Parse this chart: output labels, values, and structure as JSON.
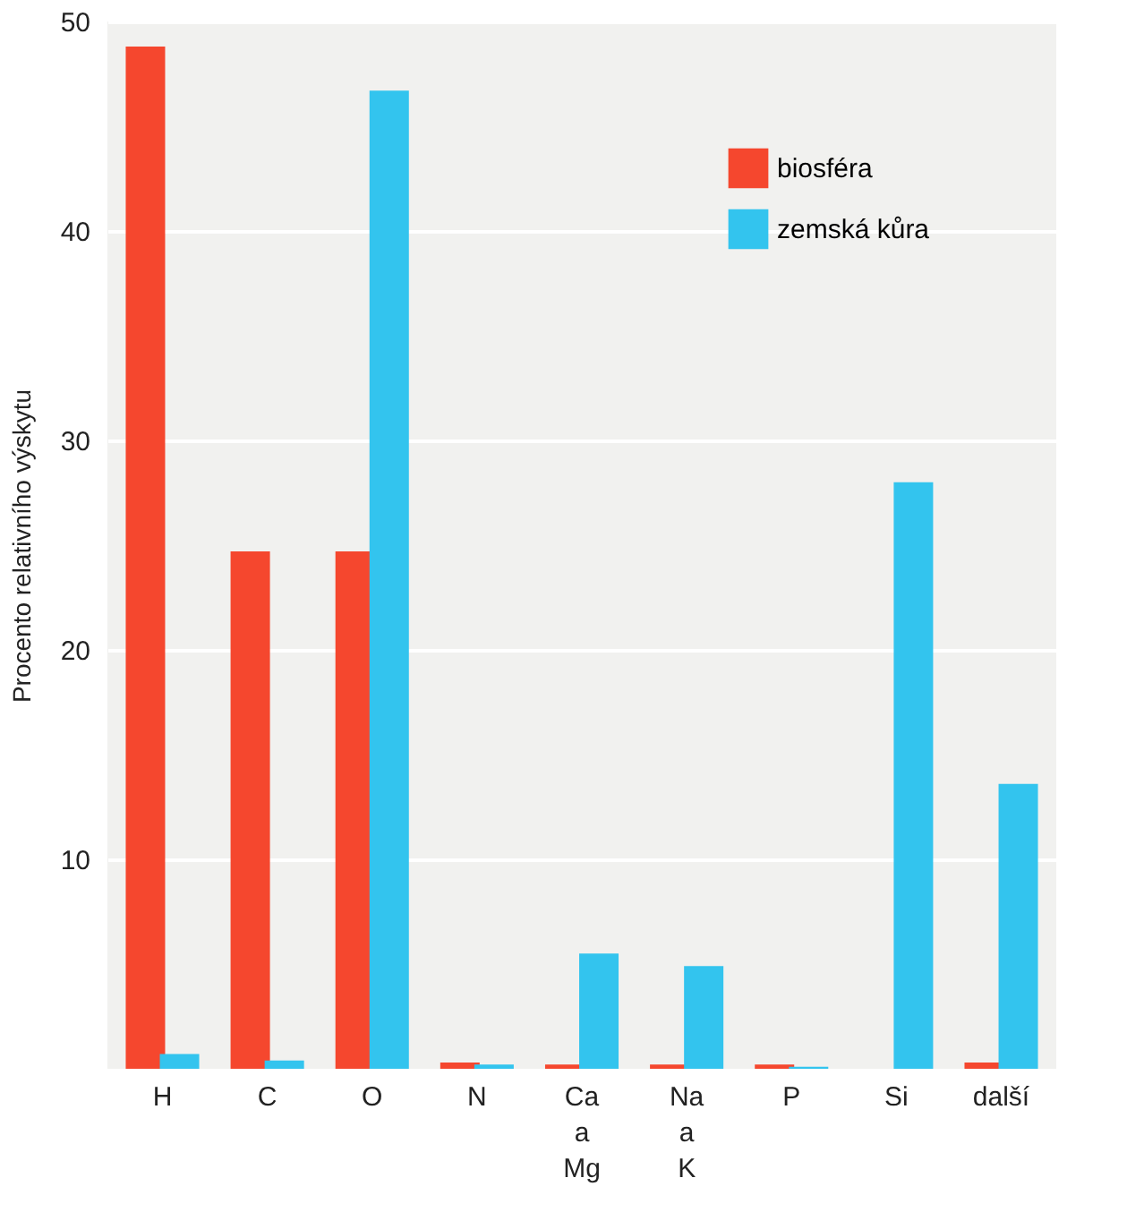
{
  "chart_data": {
    "type": "bar",
    "ylabel": "Procento relativního výskytu",
    "categories": [
      "H",
      "C",
      "O",
      "N",
      "Ca\na\nMg",
      "Na\na\nK",
      "P",
      "Si",
      "další"
    ],
    "series": [
      {
        "name": "biosféra",
        "color": "#f5472e",
        "values": [
          48.8,
          24.7,
          24.7,
          0.3,
          0.2,
          0.2,
          0.2,
          null,
          0.3
        ]
      },
      {
        "name": "zemská kůra",
        "color": "#33c4ee",
        "values": [
          0.7,
          0.4,
          46.7,
          0.2,
          5.5,
          4.9,
          0.1,
          28.0,
          13.6
        ]
      }
    ],
    "ylim": [
      0,
      50
    ],
    "yticks": [
      10,
      20,
      30,
      40,
      50
    ],
    "grid": "y",
    "legend": "top right"
  }
}
